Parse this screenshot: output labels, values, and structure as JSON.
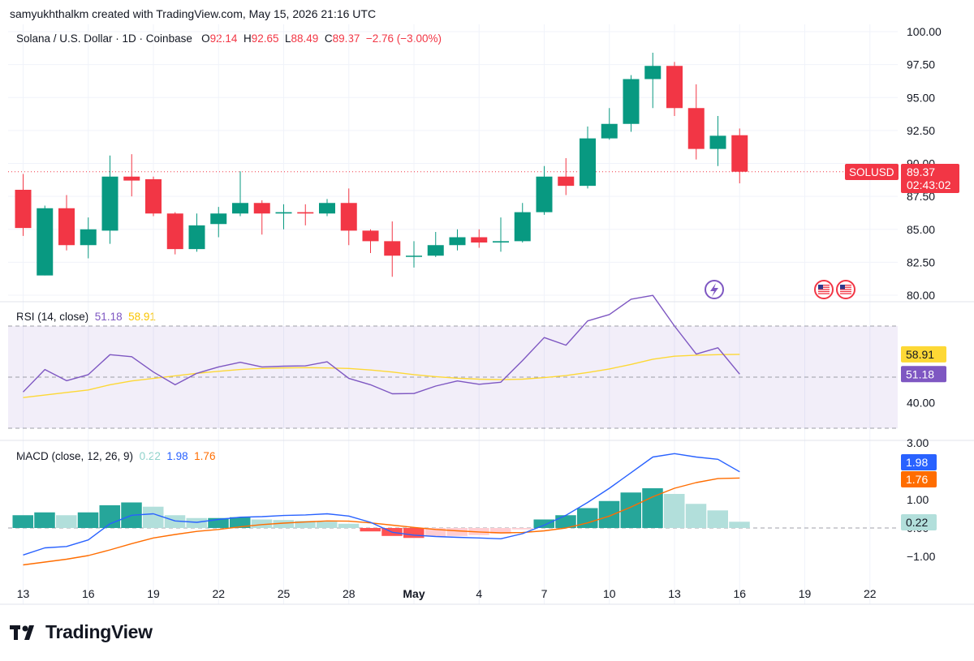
{
  "header": {
    "attribution": "samyukhthalkm created with TradingView.com, May 15, 2026 21:16 UTC"
  },
  "price_legend": {
    "symbol": "Solana / U.S. Dollar · 1D · Coinbase",
    "o_label": "O",
    "o": "92.14",
    "h_label": "H",
    "h": "92.65",
    "l_label": "L",
    "l": "88.49",
    "c_label": "C",
    "c": "89.37",
    "change": "−2.76 (−3.00%)"
  },
  "rsi_legend": {
    "label": "RSI (14, close)",
    "rsi": "51.18",
    "ma": "58.91"
  },
  "macd_legend": {
    "label": "MACD (close, 12, 26, 9)",
    "hist": "0.22",
    "macd": "1.98",
    "signal": "1.76"
  },
  "price_tag": {
    "symbol": "SOLUSD",
    "price": "89.37",
    "countdown": "02:43:02"
  },
  "rsi_tags": {
    "ma": "58.91",
    "rsi": "51.18"
  },
  "macd_tags": {
    "macd": "1.98",
    "signal": "1.76",
    "hist": "0.22"
  },
  "brand": {
    "name": "TradingView"
  },
  "colors": {
    "up": "#089981",
    "down": "#f23645",
    "rsi_line": "#7e57c2",
    "rsi_ma": "#fdd835",
    "macd_line": "#2962ff",
    "signal_line": "#ff6d00",
    "hist_up_strong": "#26a69a",
    "hist_up_weak": "#b2dfdb",
    "hist_down_strong": "#ff5252",
    "hist_down_weak": "#ffcdd2"
  },
  "chart_data": {
    "type": "candlestick",
    "x_ticks": [
      {
        "label": "13",
        "idx": 0
      },
      {
        "label": "16",
        "idx": 3
      },
      {
        "label": "19",
        "idx": 6
      },
      {
        "label": "22",
        "idx": 9
      },
      {
        "label": "25",
        "idx": 12
      },
      {
        "label": "28",
        "idx": 15
      },
      {
        "label": "May",
        "idx": 18
      },
      {
        "label": "4",
        "idx": 21
      },
      {
        "label": "7",
        "idx": 24
      },
      {
        "label": "10",
        "idx": 27
      },
      {
        "label": "13",
        "idx": 30
      },
      {
        "label": "16",
        "idx": 33
      },
      {
        "label": "19",
        "idx": 36
      },
      {
        "label": "22",
        "idx": 39
      }
    ],
    "price_axis": {
      "ticks": [
        "80.00",
        "82.50",
        "85.00",
        "87.50",
        "90.00",
        "92.50",
        "95.00",
        "97.50",
        "100.00"
      ],
      "ylim": [
        80,
        100
      ]
    },
    "rsi_axis": {
      "ticks": [
        "40.00"
      ],
      "band": [
        30,
        70
      ]
    },
    "macd_axis": {
      "ticks": [
        "−1.00",
        "0.00",
        "1.00",
        "3.00"
      ],
      "ylim": [
        -1.4,
        3
      ]
    },
    "candles": [
      {
        "o": 88.0,
        "h": 89.2,
        "l": 84.5,
        "c": 85.1
      },
      {
        "o": 81.5,
        "h": 86.8,
        "l": 81.5,
        "c": 86.6
      },
      {
        "o": 86.6,
        "h": 87.6,
        "l": 83.4,
        "c": 83.8
      },
      {
        "o": 83.8,
        "h": 85.9,
        "l": 82.8,
        "c": 85.0
      },
      {
        "o": 84.9,
        "h": 90.6,
        "l": 83.9,
        "c": 89.0
      },
      {
        "o": 89.0,
        "h": 90.7,
        "l": 87.5,
        "c": 88.7
      },
      {
        "o": 88.8,
        "h": 89.0,
        "l": 86.0,
        "c": 86.2
      },
      {
        "o": 86.2,
        "h": 86.3,
        "l": 83.1,
        "c": 83.5
      },
      {
        "o": 83.5,
        "h": 86.2,
        "l": 83.3,
        "c": 85.3
      },
      {
        "o": 85.4,
        "h": 86.7,
        "l": 84.4,
        "c": 86.2
      },
      {
        "o": 86.2,
        "h": 89.4,
        "l": 86.0,
        "c": 87.0
      },
      {
        "o": 87.0,
        "h": 87.2,
        "l": 84.6,
        "c": 86.2
      },
      {
        "o": 86.2,
        "h": 86.9,
        "l": 85.0,
        "c": 86.3
      },
      {
        "o": 86.3,
        "h": 86.9,
        "l": 85.3,
        "c": 86.2
      },
      {
        "o": 86.2,
        "h": 87.3,
        "l": 86.0,
        "c": 87.0
      },
      {
        "o": 87.0,
        "h": 88.1,
        "l": 83.8,
        "c": 84.9
      },
      {
        "o": 84.9,
        "h": 85.0,
        "l": 83.2,
        "c": 84.1
      },
      {
        "o": 84.1,
        "h": 85.6,
        "l": 81.4,
        "c": 83.0
      },
      {
        "o": 83.0,
        "h": 84.1,
        "l": 82.1,
        "c": 83.0
      },
      {
        "o": 83.0,
        "h": 84.8,
        "l": 82.9,
        "c": 83.8
      },
      {
        "o": 83.8,
        "h": 85.0,
        "l": 83.4,
        "c": 84.4
      },
      {
        "o": 84.4,
        "h": 85.0,
        "l": 83.6,
        "c": 84.0
      },
      {
        "o": 84.0,
        "h": 85.9,
        "l": 83.3,
        "c": 84.1
      },
      {
        "o": 84.1,
        "h": 87.0,
        "l": 84.0,
        "c": 86.3
      },
      {
        "o": 86.3,
        "h": 89.8,
        "l": 86.1,
        "c": 89.0
      },
      {
        "o": 89.0,
        "h": 90.4,
        "l": 87.6,
        "c": 88.3
      },
      {
        "o": 88.3,
        "h": 92.8,
        "l": 88.1,
        "c": 91.9
      },
      {
        "o": 91.9,
        "h": 94.2,
        "l": 91.8,
        "c": 93.0
      },
      {
        "o": 93.0,
        "h": 96.7,
        "l": 92.4,
        "c": 96.4
      },
      {
        "o": 96.4,
        "h": 98.4,
        "l": 94.2,
        "c": 97.4
      },
      {
        "o": 97.4,
        "h": 97.7,
        "l": 93.6,
        "c": 94.2
      },
      {
        "o": 94.2,
        "h": 96.0,
        "l": 90.3,
        "c": 91.1
      },
      {
        "o": 91.1,
        "h": 93.6,
        "l": 89.8,
        "c": 92.1
      },
      {
        "o": 92.14,
        "h": 92.65,
        "l": 88.49,
        "c": 89.37
      }
    ],
    "rsi": [
      44.2,
      53.0,
      48.6,
      51.0,
      58.8,
      58.0,
      52.0,
      47.0,
      51.5,
      54.0,
      55.8,
      54.0,
      54.3,
      54.4,
      56.0,
      49.5,
      47.0,
      43.5,
      43.6,
      46.5,
      48.5,
      47.2,
      48.0,
      56.5,
      65.5,
      62.5,
      72.0,
      74.5,
      80.5,
      82.0,
      70.0,
      59.0,
      61.5,
      51.18
    ],
    "rsi_ma": [
      42.0,
      43.0,
      44.0,
      45.0,
      47.0,
      48.5,
      49.5,
      50.5,
      51.5,
      52.3,
      53.0,
      53.4,
      53.6,
      53.7,
      53.6,
      53.4,
      52.8,
      52.0,
      51.0,
      50.2,
      49.6,
      49.2,
      49.0,
      49.2,
      49.8,
      50.6,
      51.8,
      53.2,
      55.0,
      57.0,
      58.2,
      58.6,
      58.8,
      58.91
    ],
    "macd": [
      -0.95,
      -0.7,
      -0.65,
      -0.42,
      0.15,
      0.45,
      0.5,
      0.25,
      0.2,
      0.3,
      0.38,
      0.4,
      0.44,
      0.46,
      0.5,
      0.42,
      0.2,
      -0.15,
      -0.25,
      -0.3,
      -0.33,
      -0.35,
      -0.38,
      -0.2,
      0.1,
      0.45,
      0.9,
      1.4,
      1.95,
      2.5,
      2.62,
      2.5,
      2.42,
      1.98
    ],
    "signal": [
      -1.3,
      -1.2,
      -1.1,
      -0.97,
      -0.77,
      -0.55,
      -0.35,
      -0.23,
      -0.12,
      -0.05,
      0.04,
      0.12,
      0.17,
      0.21,
      0.25,
      0.24,
      0.18,
      0.1,
      0.02,
      -0.05,
      -0.1,
      -0.14,
      -0.17,
      -0.16,
      -0.1,
      0.0,
      0.18,
      0.42,
      0.74,
      1.1,
      1.4,
      1.6,
      1.74,
      1.76
    ],
    "hist": [
      0.45,
      0.55,
      0.45,
      0.55,
      0.8,
      0.9,
      0.75,
      0.45,
      0.35,
      0.35,
      0.38,
      0.3,
      0.28,
      0.25,
      0.22,
      0.15,
      -0.12,
      -0.28,
      -0.35,
      -0.3,
      -0.28,
      -0.25,
      -0.2,
      -0.05,
      0.3,
      0.45,
      0.7,
      0.95,
      1.25,
      1.4,
      1.2,
      0.85,
      0.62,
      0.22
    ]
  }
}
